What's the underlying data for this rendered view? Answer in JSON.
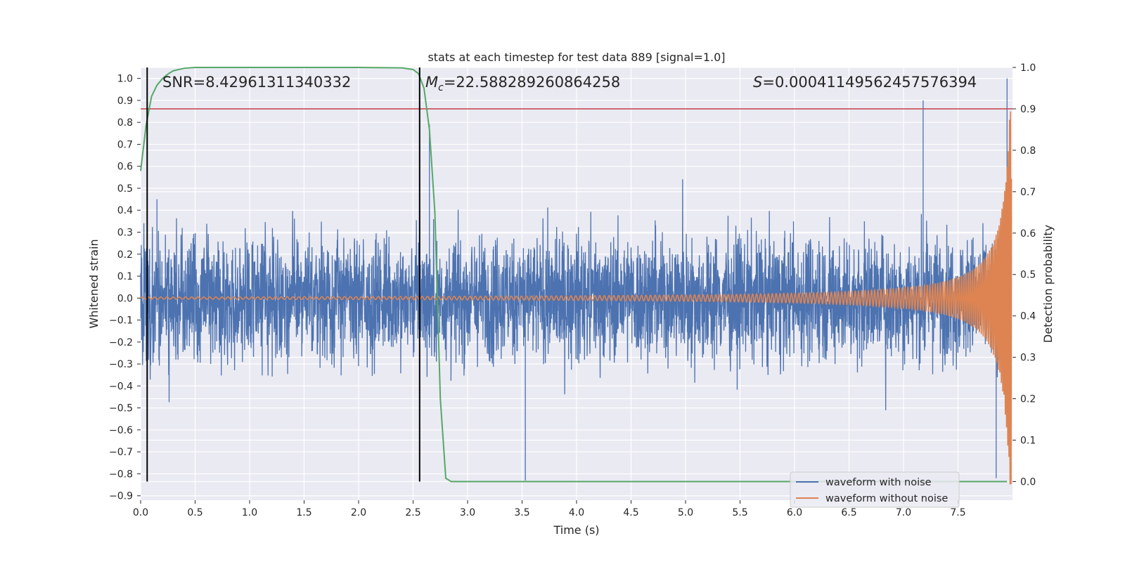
{
  "chart_data": {
    "type": "line",
    "title": "stats at each timestep for test data 889 [signal=1.0]",
    "xlabel": "Time (s)",
    "ylabel": "Whitened strain",
    "y2label": "Detection probability",
    "xlim": [
      0.0,
      8.0
    ],
    "ylim": [
      -0.92,
      1.05
    ],
    "y2lim": [
      -0.045,
      1.0
    ],
    "x_ticks": [
      "0.0",
      "0.5",
      "1.0",
      "1.5",
      "2.0",
      "2.5",
      "3.0",
      "3.5",
      "4.0",
      "4.5",
      "5.0",
      "5.5",
      "6.0",
      "6.5",
      "7.0",
      "7.5"
    ],
    "y_ticks": [
      "1.0",
      "0.9",
      "0.8",
      "0.7",
      "0.6",
      "0.5",
      "0.4",
      "0.3",
      "0.2",
      "0.1",
      "0.0",
      "−0.1",
      "−0.2",
      "−0.3",
      "−0.4",
      "−0.5",
      "−0.6",
      "−0.7",
      "−0.8",
      "−0.9"
    ],
    "y2_ticks": [
      "1.0",
      "0.9",
      "0.8",
      "0.7",
      "0.6",
      "0.5",
      "0.4",
      "0.3",
      "0.2",
      "0.1",
      "0.0"
    ],
    "annotations": {
      "snr": "SNR=8.42961311340332",
      "mc_symbol": "M",
      "mc_sub": "c",
      "mc_value": "=22.588289260864258",
      "s_symbol": "S",
      "s_value": "=0.00041149562457576394"
    },
    "vlines_x": [
      0.06,
      2.56
    ],
    "threshold_probability": 0.9,
    "series": [
      {
        "name": "waveform with noise",
        "color": "#4c72b0",
        "axis": "left",
        "kind": "noise",
        "amplitude_typical": 0.35,
        "peaks": [
          [
            0.15,
            0.45
          ],
          [
            2.65,
            0.79
          ],
          [
            3.53,
            -0.83
          ],
          [
            7.18,
            0.9
          ],
          [
            7.85,
            -0.82
          ],
          [
            7.95,
            1.0
          ]
        ]
      },
      {
        "name": "waveform without noise",
        "color": "#dd8452",
        "axis": "left",
        "kind": "chirp",
        "amplitude_start": 0.005,
        "amplitude_end": 0.85
      },
      {
        "name": "detection probability",
        "color": "#55a868",
        "axis": "right",
        "x": [
          0.0,
          0.05,
          0.1,
          0.15,
          0.2,
          0.25,
          0.3,
          0.4,
          0.5,
          1.0,
          2.0,
          2.4,
          2.5,
          2.55,
          2.6,
          2.65,
          2.7,
          2.75,
          2.8,
          2.85,
          3.0,
          7.95
        ],
        "values": [
          0.75,
          0.86,
          0.93,
          0.957,
          0.973,
          0.984,
          0.992,
          0.998,
          1.0,
          1.0,
          1.0,
          0.999,
          0.995,
          0.985,
          0.95,
          0.85,
          0.65,
          0.2,
          0.008,
          0.0,
          0.0,
          0.0
        ]
      }
    ],
    "legend": {
      "position": "bottom-right",
      "entries": [
        "waveform with noise",
        "waveform without noise"
      ]
    },
    "colors": {
      "background": "#eaeaf2",
      "grid": "#ffffff",
      "threshold": "#c44e52",
      "vline": "#000000"
    }
  }
}
